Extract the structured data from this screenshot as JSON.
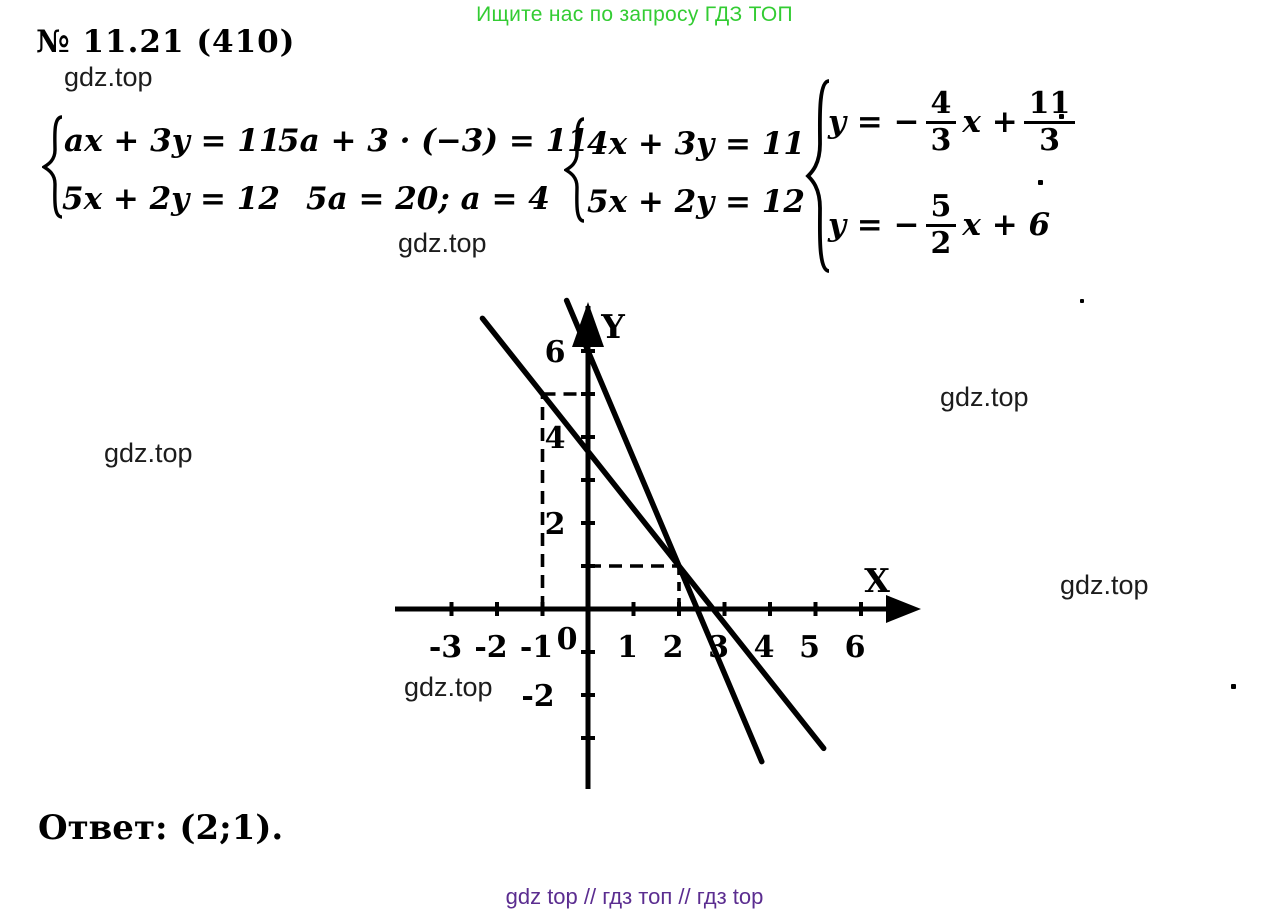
{
  "banner": {
    "text": "Ищите нас по запросу ГДЗ ТОП",
    "color": "#33cc33"
  },
  "problem": {
    "number": "№ 11.21 (410)"
  },
  "watermark": {
    "text": "gdz.top"
  },
  "equations": {
    "system1": {
      "line1": "ax + 3y = 11",
      "line2": "5x + 2y = 12"
    },
    "step1": "5a + 3 · (−3) = 11",
    "step2": "5a = 20; a = 4",
    "system2": {
      "line1": "4x + 3y = 11",
      "line2": "5x + 2y = 12"
    },
    "system3": {
      "eq1": {
        "pre": "y = −",
        "f1_num": "4",
        "f1_den": "3",
        "mid": "x +",
        "f2_num": "11",
        "f2_den": "3"
      },
      "eq2": {
        "pre": "y = −",
        "f_num": "5",
        "f_den": "2",
        "post": "x + 6"
      }
    }
  },
  "answer": {
    "text": "Ответ: (2;1)."
  },
  "footer": {
    "text": "gdz top  //  гдз топ  //  гдз top",
    "color": "#5b2d90"
  },
  "chart_data": {
    "type": "line",
    "title": "",
    "xlabel": "X",
    "ylabel": "Y",
    "origin_label": "0",
    "xlim": [
      -4.2,
      7.3
    ],
    "ylim": [
      -4.6,
      7.6
    ],
    "grid": false,
    "x_ticks": [
      -3,
      -2,
      -1,
      1,
      2,
      3,
      4,
      5,
      6
    ],
    "y_ticks": [
      6,
      5,
      4,
      3,
      2,
      1,
      -1,
      -2,
      -3
    ],
    "y_tick_labels": [
      6,
      4,
      2,
      -2
    ],
    "series": [
      {
        "name": "y = −4/3·x + 11/3",
        "slope": -1.33333,
        "intercept": 3.66667,
        "x_range": [
          -2.32,
          5.18
        ]
      },
      {
        "name": "y = −5/2·x + 6",
        "slope": -2.5,
        "intercept": 6,
        "x_range": [
          -0.47,
          3.82
        ]
      }
    ],
    "dashed_guides": [
      {
        "from": [
          -1,
          0
        ],
        "to": [
          -1,
          5
        ]
      },
      {
        "from": [
          -1,
          5
        ],
        "to": [
          0,
          5
        ]
      },
      {
        "from": [
          0,
          1
        ],
        "to": [
          2,
          1
        ]
      },
      {
        "from": [
          2,
          1
        ],
        "to": [
          2,
          0
        ]
      }
    ],
    "intersection": [
      2,
      1
    ]
  }
}
